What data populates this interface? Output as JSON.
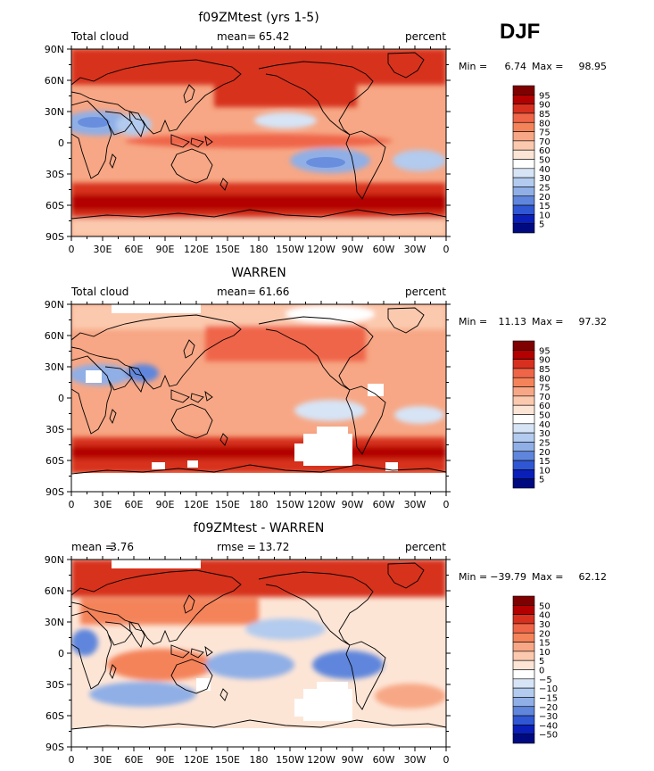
{
  "season": "DJF",
  "colors": {
    "land_outline": "#000000",
    "missing": "#ffffff"
  },
  "colorbars": {
    "cloud": {
      "levels": [
        "95",
        "90",
        "85",
        "80",
        "75",
        "70",
        "60",
        "50",
        "40",
        "30",
        "25",
        "20",
        "15",
        "10",
        "5"
      ],
      "colors": [
        "#7f0000",
        "#b30000",
        "#d7301f",
        "#ef6548",
        "#f4835a",
        "#f7a785",
        "#fbc9ae",
        "#fde5d6",
        "#ffffff",
        "#d6e4f6",
        "#b2cbee",
        "#8fafe6",
        "#5f86dc",
        "#3057d3",
        "#0a1fb8",
        "#000a80"
      ]
    },
    "diff": {
      "levels": [
        "50",
        "40",
        "30",
        "20",
        "15",
        "10",
        "5",
        "0",
        "−5",
        "−10",
        "−15",
        "−20",
        "−30",
        "−40",
        "−50"
      ],
      "colors": [
        "#7f0000",
        "#b30000",
        "#d7301f",
        "#ef6548",
        "#f4835a",
        "#f7a785",
        "#fbc9ae",
        "#fde5d6",
        "#ffffff",
        "#d6e4f6",
        "#b2cbee",
        "#8fafe6",
        "#5f86dc",
        "#3057d3",
        "#0a1fb8",
        "#000a80"
      ]
    }
  },
  "chart_data": [
    {
      "type": "heatmap",
      "title": "f09ZMtest (yrs 1-5)",
      "left_label": "Total cloud",
      "center_label": "mean=",
      "center_value": "65.42",
      "right_label": "percent",
      "min_label": "Min =",
      "min_value": "6.74",
      "max_label": "Max =",
      "max_value": "98.95",
      "colorbar": "cloud",
      "x_ticks": [
        "0",
        "30E",
        "60E",
        "90E",
        "120E",
        "150E",
        "180",
        "150W",
        "120W",
        "90W",
        "60W",
        "30W",
        "0"
      ],
      "y_ticks": [
        "90N",
        "60N",
        "30N",
        "0",
        "30S",
        "60S",
        "90S"
      ],
      "x_range": [
        0,
        360
      ],
      "y_range": [
        -90,
        90
      ]
    },
    {
      "type": "heatmap",
      "title": "WARREN",
      "left_label": "Total cloud",
      "center_label": "mean=",
      "center_value": "61.66",
      "right_label": "percent",
      "min_label": "Min =",
      "min_value": "11.13",
      "max_label": "Max =",
      "max_value": "97.32",
      "colorbar": "cloud",
      "x_ticks": [
        "0",
        "30E",
        "60E",
        "90E",
        "120E",
        "150E",
        "180",
        "150W",
        "120W",
        "90W",
        "60W",
        "30W",
        "0"
      ],
      "y_ticks": [
        "90N",
        "60N",
        "30N",
        "0",
        "30S",
        "60S",
        "90S"
      ],
      "x_range": [
        0,
        360
      ],
      "y_range": [
        -90,
        90
      ]
    },
    {
      "type": "heatmap",
      "title": "f09ZMtest - WARREN",
      "left_label": "mean =",
      "left_value": "3.76",
      "center_label": "rmse =",
      "center_value": "13.72",
      "right_label": "percent",
      "min_label": "Min =",
      "min_value": "−39.79",
      "max_label": "Max =",
      "max_value": "62.12",
      "colorbar": "diff",
      "x_ticks": [
        "0",
        "30E",
        "60E",
        "90E",
        "120E",
        "150E",
        "180",
        "150W",
        "120W",
        "90W",
        "60W",
        "30W",
        "0"
      ],
      "y_ticks": [
        "90N",
        "60N",
        "30N",
        "0",
        "30S",
        "60S",
        "90S"
      ],
      "x_range": [
        0,
        360
      ],
      "y_range": [
        -90,
        90
      ]
    }
  ]
}
